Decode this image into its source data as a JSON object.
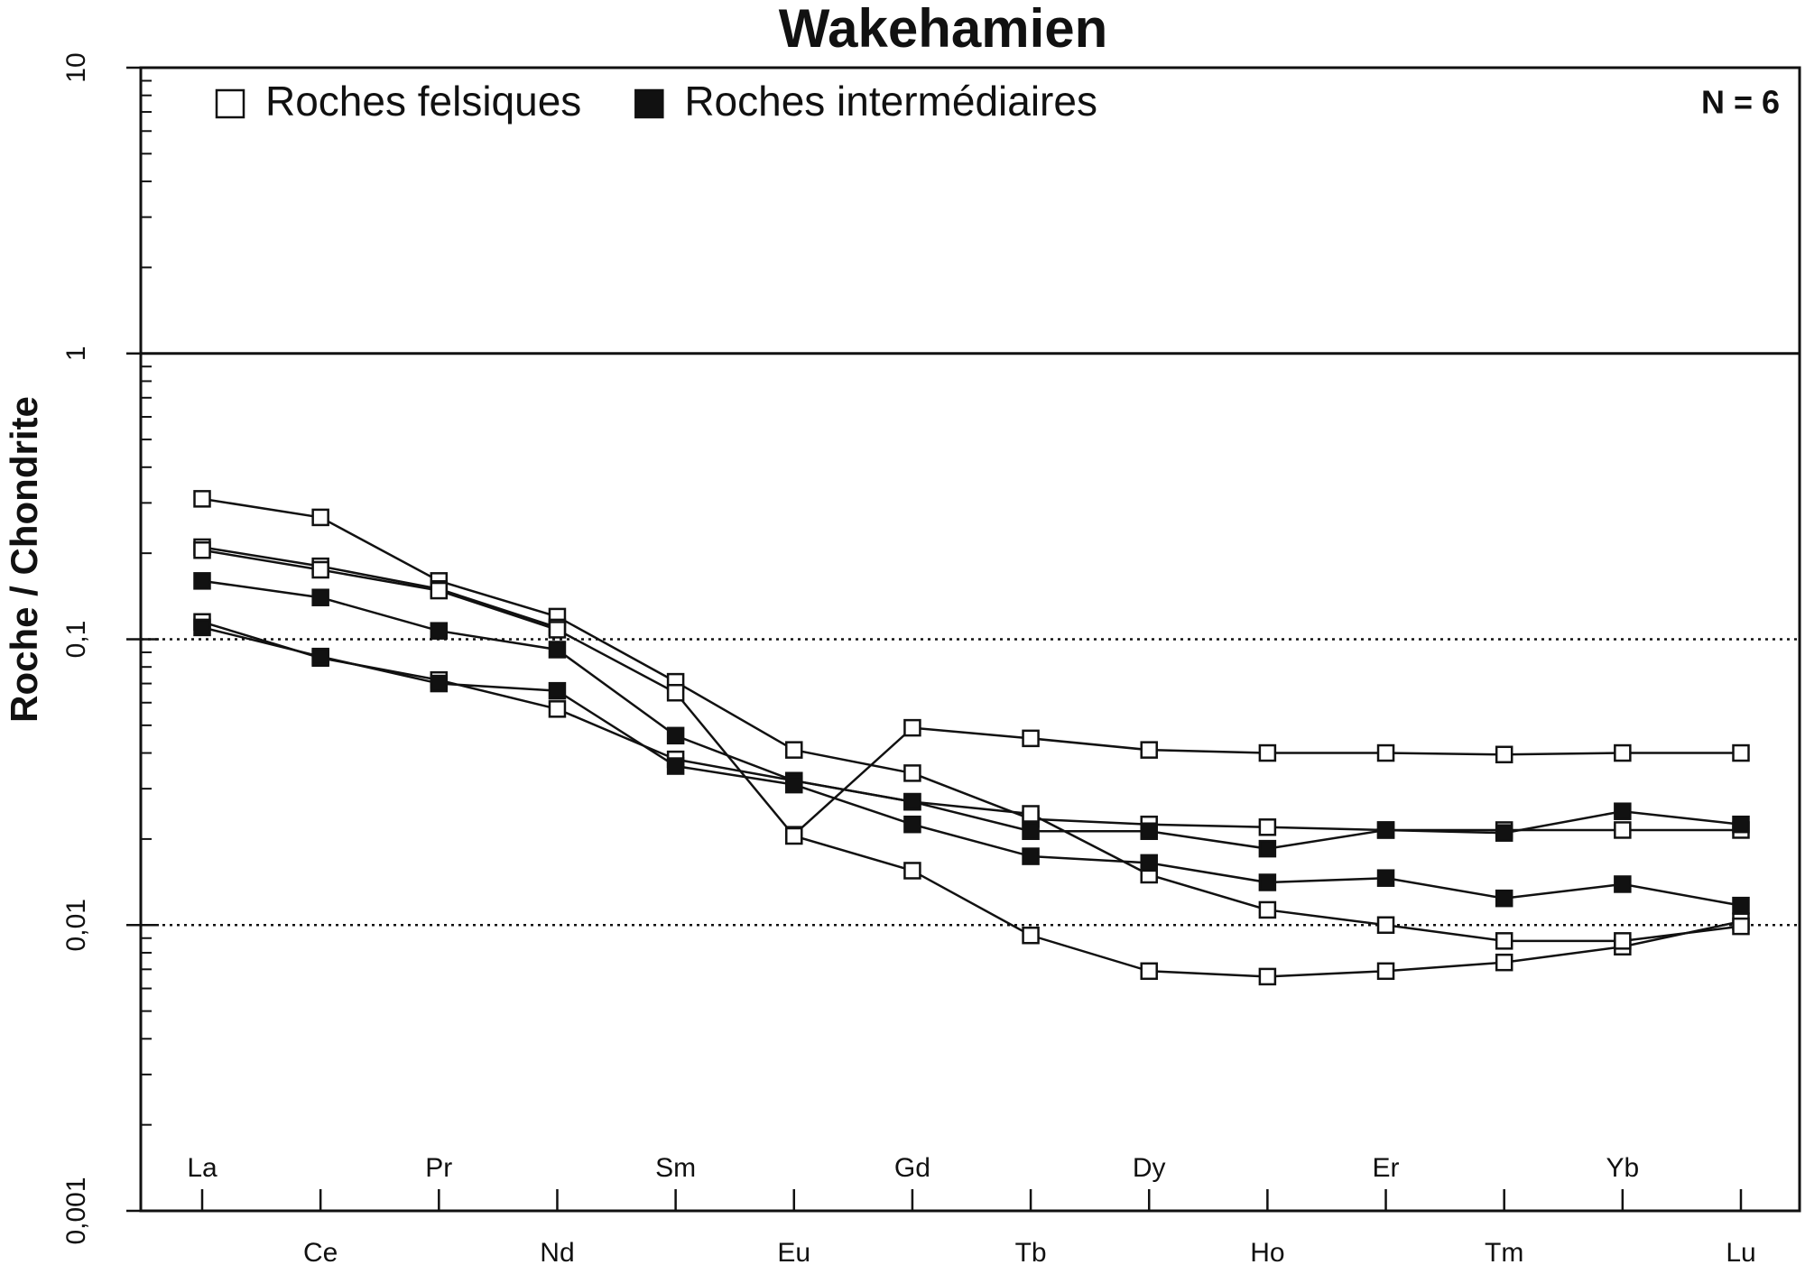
{
  "chart_data": {
    "type": "line",
    "title": "Wakehamien",
    "ylabel": "Roche / Chondrite",
    "annotation": "N = 6",
    "categories": [
      "La",
      "Ce",
      "Pr",
      "Nd",
      "Sm",
      "Eu",
      "Gd",
      "Tb",
      "Dy",
      "Ho",
      "Er",
      "Tm",
      "Yb",
      "Lu"
    ],
    "ylim": [
      0.001,
      10
    ],
    "log_y": true,
    "yticks": [
      {
        "value": 0.001,
        "label": "0,001"
      },
      {
        "value": 0.01,
        "label": "0,01"
      },
      {
        "value": 0.1,
        "label": "0,1"
      },
      1,
      10
    ],
    "hlines": [
      {
        "value": 1,
        "style": "solid"
      },
      {
        "value": 0.1,
        "style": "dotted"
      },
      {
        "value": 0.01,
        "style": "dotted"
      }
    ],
    "legend": "top-left",
    "series": [
      {
        "name": "Roches felsiques",
        "color": "#111111",
        "marker": "open",
        "samples": [
          [
            0.31,
            0.267,
            0.16,
            0.12,
            0.071,
            0.041,
            0.034,
            0.0235,
            0.0225,
            0.022,
            0.0215,
            0.0215,
            0.0215,
            0.0215
          ],
          [
            0.21,
            0.18,
            0.15,
            0.11,
            null,
            0.0207,
            0.049,
            0.045,
            0.041,
            0.04,
            0.04,
            0.0395,
            0.04,
            0.04
          ],
          [
            0.205,
            0.175,
            0.148,
            0.108,
            0.065,
            0.0205,
            0.0155,
            0.0092,
            0.0069,
            0.0066,
            0.0069,
            0.0074,
            0.0084,
            0.0103
          ],
          [
            0.115,
            0.086,
            0.072,
            0.057,
            0.038,
            0.032,
            0.027,
            0.0245,
            0.015,
            0.0113,
            0.01,
            0.0088,
            0.0088,
            0.0099
          ]
        ]
      },
      {
        "name": "Roches intermédiaires",
        "color": "#111111",
        "marker": "filled",
        "samples": [
          [
            0.16,
            0.14,
            0.107,
            0.092,
            0.046,
            0.032,
            0.027,
            0.0213,
            0.0213,
            0.0185,
            0.0215,
            0.021,
            0.025,
            0.0225
          ],
          [
            0.11,
            0.087,
            0.07,
            0.066,
            0.036,
            0.031,
            0.0225,
            0.0174,
            0.0165,
            0.0141,
            0.0146,
            0.0124,
            0.0139,
            0.0117
          ]
        ]
      }
    ]
  }
}
